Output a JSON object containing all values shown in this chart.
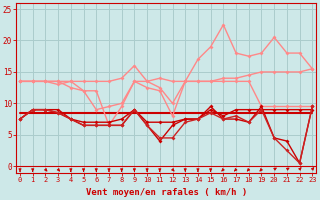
{
  "xlabel": "Vent moyen/en rafales ( km/h )",
  "bg_color": "#cde8e8",
  "grid_color": "#aacccc",
  "x_values": [
    0,
    1,
    2,
    3,
    4,
    5,
    6,
    7,
    8,
    9,
    10,
    11,
    12,
    13,
    14,
    15,
    16,
    17,
    18,
    19,
    20,
    21,
    22,
    23
  ],
  "ylim": [
    -1,
    26
  ],
  "yticks": [
    0,
    5,
    10,
    15,
    20,
    25
  ],
  "xlim": [
    -0.3,
    23.3
  ],
  "line_flat": {
    "y": [
      8.5,
      8.5,
      8.5,
      8.5,
      8.5,
      8.5,
      8.5,
      8.5,
      8.5,
      8.5,
      8.5,
      8.5,
      8.5,
      8.5,
      8.5,
      8.5,
      8.5,
      8.5,
      8.5,
      8.5,
      8.5,
      8.5,
      8.5,
      8.5
    ],
    "color": "#cc0000",
    "lw": 1.5,
    "marker": null
  },
  "line_rafale_upper": {
    "y": [
      13.5,
      13.5,
      13.5,
      13.5,
      13.5,
      13.5,
      13.5,
      13.5,
      14.0,
      16.0,
      13.5,
      14.0,
      13.5,
      13.5,
      13.5,
      13.5,
      14.0,
      14.0,
      14.5,
      15.0,
      15.0,
      15.0,
      15.0,
      15.5
    ],
    "color": "#ff8888",
    "lw": 1.0,
    "marker": "D",
    "ms": 2.0
  },
  "line_rafale_jagged": {
    "y": [
      13.5,
      13.5,
      13.5,
      13.0,
      13.5,
      12.0,
      12.0,
      6.5,
      9.5,
      13.5,
      13.5,
      12.5,
      10.0,
      13.5,
      13.5,
      13.5,
      13.5,
      13.5,
      13.5,
      9.5,
      9.5,
      9.5,
      9.5,
      9.5
    ],
    "color": "#ff8888",
    "lw": 1.0,
    "marker": "D",
    "ms": 2.0
  },
  "line_rafale_big": {
    "y": [
      13.5,
      13.5,
      13.5,
      13.5,
      12.5,
      12.0,
      9.0,
      9.5,
      10.0,
      13.5,
      12.5,
      12.0,
      8.0,
      13.5,
      17.0,
      19.0,
      22.5,
      18.0,
      17.5,
      18.0,
      20.5,
      18.0,
      18.0,
      15.5
    ],
    "color": "#ff8888",
    "lw": 1.0,
    "marker": "D",
    "ms": 2.0
  },
  "line_wind1": {
    "y": [
      7.5,
      9.0,
      9.0,
      9.0,
      7.5,
      7.0,
      7.0,
      7.0,
      7.5,
      9.0,
      7.0,
      7.0,
      7.0,
      7.5,
      7.5,
      9.0,
      8.0,
      9.0,
      9.0,
      9.0,
      9.0,
      9.0,
      9.0,
      9.0
    ],
    "color": "#cc0000",
    "lw": 1.0,
    "marker": "D",
    "ms": 2.0
  },
  "line_wind2": {
    "y": [
      7.5,
      9.0,
      9.0,
      8.5,
      7.5,
      6.5,
      6.5,
      6.5,
      6.5,
      9.0,
      6.5,
      4.0,
      6.5,
      7.5,
      7.5,
      9.5,
      7.5,
      7.5,
      7.0,
      9.5,
      4.5,
      4.0,
      0.5,
      9.5
    ],
    "color": "#cc0000",
    "lw": 1.0,
    "marker": "D",
    "ms": 2.0
  },
  "line_wind3": {
    "y": [
      7.5,
      9.0,
      9.0,
      8.5,
      7.5,
      6.5,
      6.5,
      6.5,
      6.5,
      9.0,
      6.5,
      4.5,
      4.5,
      7.0,
      7.5,
      8.5,
      7.5,
      8.0,
      7.0,
      9.0,
      4.5,
      2.5,
      0.5,
      9.5
    ],
    "color": "#cc2222",
    "lw": 1.0,
    "marker": "D",
    "ms": 2.0
  },
  "arrows": {
    "x": [
      0,
      1,
      2,
      3,
      4,
      5,
      6,
      7,
      8,
      9,
      10,
      11,
      12,
      13,
      14,
      15,
      16,
      17,
      18,
      19,
      20,
      21,
      22,
      23
    ],
    "angles_deg": [
      270,
      270,
      300,
      300,
      270,
      270,
      270,
      270,
      270,
      270,
      270,
      270,
      300,
      270,
      270,
      270,
      240,
      240,
      240,
      240,
      45,
      45,
      60,
      60
    ],
    "color": "#cc0000"
  }
}
